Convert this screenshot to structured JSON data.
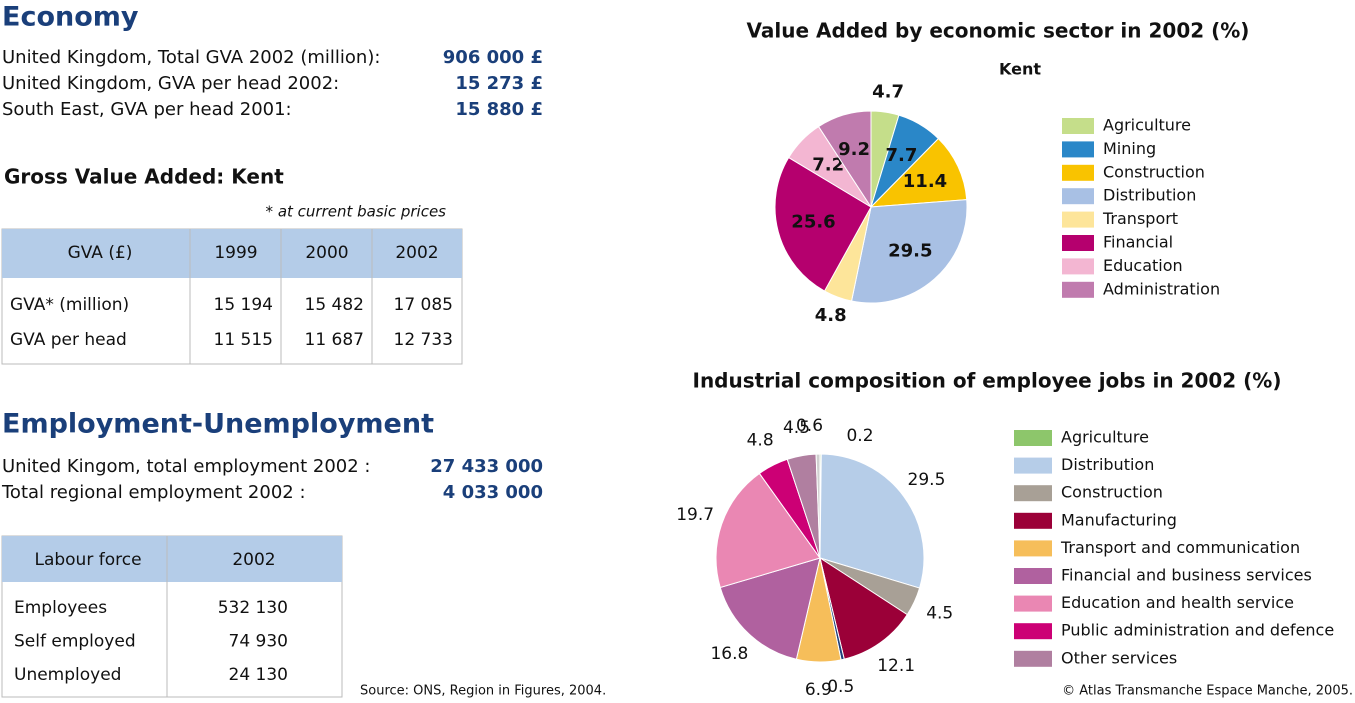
{
  "economy": {
    "title": "Economy",
    "rows": [
      {
        "label": "United Kingdom, Total GVA 2002 (million):",
        "value": "906 000 £"
      },
      {
        "label": "United Kingdom, GVA per head 2002:",
        "value": "15 273 £"
      },
      {
        "label": "South East, GVA per head 2001:",
        "value": "15 880 £"
      }
    ]
  },
  "gva_table": {
    "title": "Gross Value Added: Kent",
    "note": "* at current basic prices",
    "header": [
      "GVA (£)",
      "1999",
      "2000",
      "2002"
    ],
    "rows": [
      [
        "GVA* (million)",
        "15 194",
        "15 482",
        "17 085"
      ],
      [
        "GVA per head",
        "11 515",
        "11 687",
        "12 733"
      ]
    ]
  },
  "employment": {
    "title": "Employment-Unemployment",
    "rows": [
      {
        "label": "United Kingom, total employment 2002 :",
        "value": "27 433 000"
      },
      {
        "label": "Total regional employment 2002 :",
        "value": "4 033 000"
      }
    ]
  },
  "labour_table": {
    "header": [
      "Labour force",
      "2002"
    ],
    "rows": [
      [
        "Employees",
        "532 130"
      ],
      [
        "Self employed",
        "74 930"
      ],
      [
        "Unemployed",
        "24 130"
      ]
    ]
  },
  "source": "Source: ONS, Region in Figures, 2004.",
  "copyright": "© Atlas Transmanche Espace Manche, 2005.",
  "chart_data": [
    {
      "type": "pie",
      "title": "Value Added by economic sector in 2002 (%)",
      "subtitle": "Kent",
      "categories": [
        "Agriculture",
        "Mining",
        "Construction",
        "Distribution",
        "Transport",
        "Financial",
        "Education",
        "Administration"
      ],
      "values": [
        4.7,
        7.7,
        11.4,
        29.5,
        4.8,
        25.6,
        7.2,
        9.2
      ],
      "colors": [
        "#c5de8a",
        "#2a87c8",
        "#f9c300",
        "#a8c0e4",
        "#fde59a",
        "#b5006e",
        "#f3b6d2",
        "#c07bae"
      ]
    },
    {
      "type": "pie",
      "title": "Industrial composition of employee jobs in 2002 (%)",
      "categories": [
        "Agriculture",
        "Distribution",
        "Construction",
        "Manufacturing",
        null,
        "Transport and communication",
        "Financial and business services",
        "Education and health service",
        "Public administration and defence",
        "Other services",
        null
      ],
      "values": [
        0.2,
        29.5,
        4.5,
        12.1,
        0.5,
        6.9,
        16.8,
        19.7,
        4.8,
        4.5,
        0.6
      ],
      "colors": [
        "#8dc66b",
        "#b6cde8",
        "#a8a096",
        "#9b0038",
        "#1f3f7a",
        "#f6be5a",
        "#b0619f",
        "#ea87b3",
        "#cc0075",
        "#b07fa0",
        "#d0d0d0"
      ]
    }
  ]
}
